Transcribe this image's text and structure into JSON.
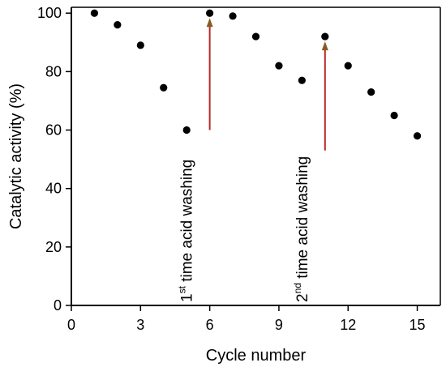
{
  "chart_data": {
    "type": "scatter",
    "xlabel": "Cycle number",
    "ylabel": "Catalytic activity (%)",
    "xlim": [
      0,
      16
    ],
    "ylim": [
      0,
      102
    ],
    "xticks": [
      0,
      3,
      6,
      9,
      12,
      15
    ],
    "yticks": [
      0,
      20,
      40,
      60,
      80,
      100
    ],
    "series": [
      {
        "x": [
          1,
          2,
          3,
          4,
          5,
          6,
          7,
          8,
          9,
          10,
          11,
          12,
          13,
          14,
          15
        ],
        "y": [
          100,
          96,
          89,
          74.5,
          60,
          100,
          99,
          92,
          82,
          77,
          92,
          82,
          73,
          65,
          58
        ]
      }
    ],
    "annotations": [
      {
        "prefix": "1",
        "superscript": "st",
        "text": " time acid washing",
        "arrow_x": 6,
        "arrow_from_y": 60,
        "arrow_to_y": 100
      },
      {
        "prefix": "2",
        "superscript": "nd",
        "text": " time acid washing",
        "arrow_x": 11,
        "arrow_from_y": 53,
        "arrow_to_y": 92
      }
    ],
    "colors": {
      "points": "#000000",
      "arrow_shaft": "#b82a2a",
      "arrow_head": "#8b5a1e",
      "axes": "#000000"
    }
  }
}
